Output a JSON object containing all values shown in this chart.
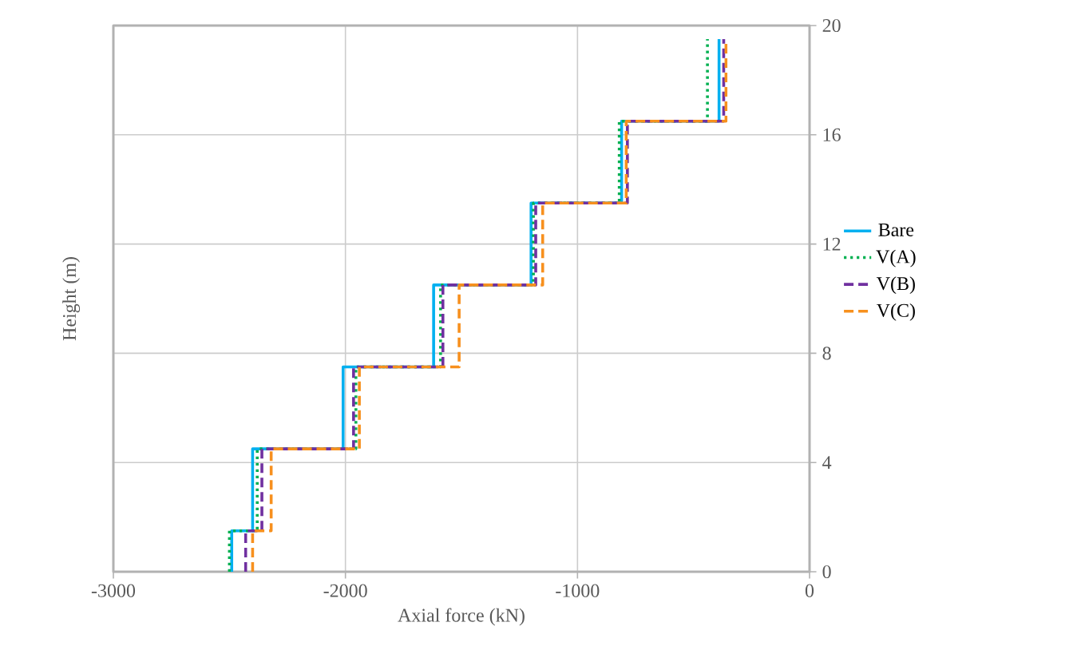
{
  "chart_data": {
    "type": "line",
    "xlabel": "Axial force (kN)",
    "ylabel": "Height (m)",
    "xlim": [
      -3000,
      0
    ],
    "xticks": [
      -3000,
      -2000,
      -1000,
      0
    ],
    "ylim": [
      0,
      20
    ],
    "yticks": [
      0,
      4,
      8,
      12,
      16,
      20
    ],
    "grid": true,
    "legend": "right",
    "marker": "none",
    "series": [
      {
        "name": "Bare",
        "color": "#00b0f0",
        "line_style": "solid",
        "x": [
          -2490,
          -2490,
          -2400,
          -2400,
          -2010,
          -2010,
          -1620,
          -1620,
          -1200,
          -1200,
          -810,
          -810,
          -390,
          -390
        ],
        "values": [
          0,
          1.5,
          1.5,
          4.5,
          4.5,
          7.5,
          7.5,
          10.5,
          10.5,
          13.5,
          13.5,
          16.5,
          16.5,
          19.5
        ]
      },
      {
        "name": "V(A)",
        "color": "#00b050",
        "line_style": "dotted",
        "x": [
          -2500,
          -2500,
          -2380,
          -2380,
          -1955,
          -1955,
          -1590,
          -1590,
          -1190,
          -1190,
          -820,
          -820,
          -440,
          -440
        ],
        "values": [
          0,
          1.5,
          1.5,
          4.5,
          4.5,
          7.5,
          7.5,
          10.5,
          10.5,
          13.5,
          13.5,
          16.5,
          16.5,
          19.5
        ]
      },
      {
        "name": "V(B)",
        "color": "#7030a0",
        "line_style": "dashed",
        "x": [
          -2430,
          -2430,
          -2360,
          -2360,
          -1965,
          -1965,
          -1580,
          -1580,
          -1180,
          -1180,
          -785,
          -785,
          -370,
          -370
        ],
        "values": [
          0,
          1.5,
          1.5,
          4.5,
          4.5,
          7.5,
          7.5,
          10.5,
          10.5,
          13.5,
          13.5,
          16.5,
          16.5,
          19.5
        ]
      },
      {
        "name": "V(C)",
        "color": "#f7901e",
        "line_style": "dashed",
        "x": [
          -2400,
          -2400,
          -2320,
          -2320,
          -1940,
          -1940,
          -1510,
          -1510,
          -1150,
          -1150,
          -790,
          -790,
          -360,
          -360
        ],
        "values": [
          0,
          1.5,
          1.5,
          4.5,
          4.5,
          7.5,
          7.5,
          10.5,
          10.5,
          13.5,
          13.5,
          16.5,
          16.5,
          19.5
        ]
      }
    ]
  }
}
